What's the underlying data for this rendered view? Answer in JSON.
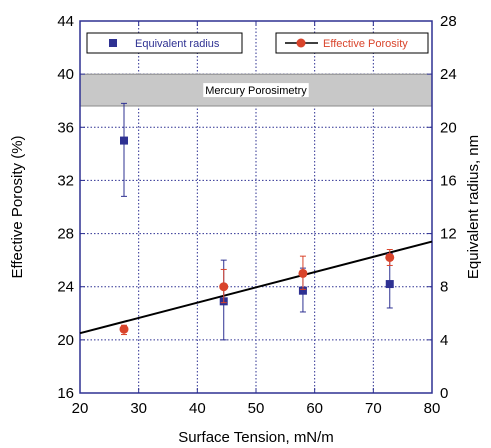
{
  "chart_data": {
    "type": "scatter",
    "xlabel": "Surface Tension, mN/m",
    "ylabel_left": "Effective Porosity (%)",
    "ylabel_right": "Equivalent radius, nm",
    "xlim": [
      20,
      80
    ],
    "ylim_left": [
      16,
      44
    ],
    "ylim_right": [
      0,
      28
    ],
    "x_ticks": [
      "20",
      "30",
      "40",
      "50",
      "60",
      "70",
      "80"
    ],
    "y_ticks_left": [
      "16",
      "20",
      "24",
      "28",
      "32",
      "36",
      "40",
      "44"
    ],
    "y_ticks_right": [
      "0",
      "4",
      "8",
      "12",
      "16",
      "20",
      "24",
      "28"
    ],
    "grid": true,
    "band": {
      "label": "Mercury Porosimetry",
      "y_from": 37.6,
      "y_to": 40
    },
    "series": [
      {
        "name": "Equivalent radius",
        "axis": "right",
        "marker": "square",
        "color": "#2e3192",
        "points": [
          {
            "x": 27.5,
            "y": 19.0,
            "err_low": 14.8,
            "err_high": 21.8
          },
          {
            "x": 44.5,
            "y": 6.9,
            "err_low": 4.0,
            "err_high": 10.0
          },
          {
            "x": 58.0,
            "y": 7.7,
            "err_low": 6.1,
            "err_high": 9.4
          },
          {
            "x": 72.8,
            "y": 8.2,
            "err_low": 6.4,
            "err_high": 10.5
          }
        ]
      },
      {
        "name": "Effective Porosity",
        "axis": "left",
        "marker": "circle",
        "color": "#d9442b",
        "points": [
          {
            "x": 27.5,
            "y": 20.8,
            "err_low": 20.4,
            "err_high": 21.1
          },
          {
            "x": 44.5,
            "y": 24.0,
            "err_low": 22.8,
            "err_high": 25.3
          },
          {
            "x": 58.0,
            "y": 25.0,
            "err_low": 23.8,
            "err_high": 26.3
          },
          {
            "x": 72.8,
            "y": 26.2,
            "err_low": 25.6,
            "err_high": 26.8
          }
        ]
      }
    ],
    "fit_line": {
      "x": [
        20,
        80
      ],
      "y": [
        20.5,
        27.4
      ],
      "axis": "left",
      "color": "#000000"
    },
    "legend": [
      {
        "label": "Equivalent radius",
        "position": "top-left"
      },
      {
        "label": "Effective Porosity",
        "position": "top-right"
      }
    ]
  }
}
